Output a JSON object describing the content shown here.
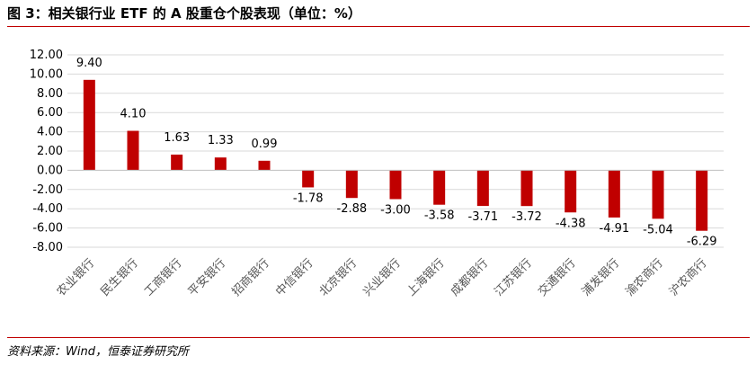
{
  "figure": {
    "title": "图 3：相关银行业 ETF 的 A 股重仓个股表现（单位：%）",
    "source": "资料来源：Wind，恒泰证券研究所"
  },
  "colors": {
    "bar": "#c00000",
    "gridline": "#d9d9d9",
    "rule": "#c00000"
  },
  "chart_data": {
    "type": "bar",
    "title": "",
    "xlabel": "",
    "ylabel": "",
    "categories": [
      "农业银行",
      "民生银行",
      "工商银行",
      "平安银行",
      "招商银行",
      "中信银行",
      "北京银行",
      "兴业银行",
      "上海银行",
      "成都银行",
      "江苏银行",
      "交通银行",
      "浦发银行",
      "渝农商行",
      "沪农商行"
    ],
    "values": [
      9.4,
      4.1,
      1.63,
      1.33,
      0.99,
      -1.78,
      -2.88,
      -3.0,
      -3.58,
      -3.71,
      -3.72,
      -4.38,
      -4.91,
      -5.04,
      -6.29
    ],
    "value_labels": [
      "9.40",
      "4.10",
      "1.63",
      "1.33",
      "0.99",
      "-1.78",
      "-2.88",
      "-3.00",
      "-3.58",
      "-3.71",
      "-3.72",
      "-4.38",
      "-4.91",
      "-5.04",
      "-6.29"
    ],
    "ylim": [
      -8,
      12
    ],
    "yticks": [
      "12.00",
      "10.00",
      "8.00",
      "6.00",
      "4.00",
      "2.00",
      "0.00",
      "-2.00",
      "-4.00",
      "-6.00",
      "-8.00"
    ],
    "grid": true,
    "legend": "none"
  }
}
